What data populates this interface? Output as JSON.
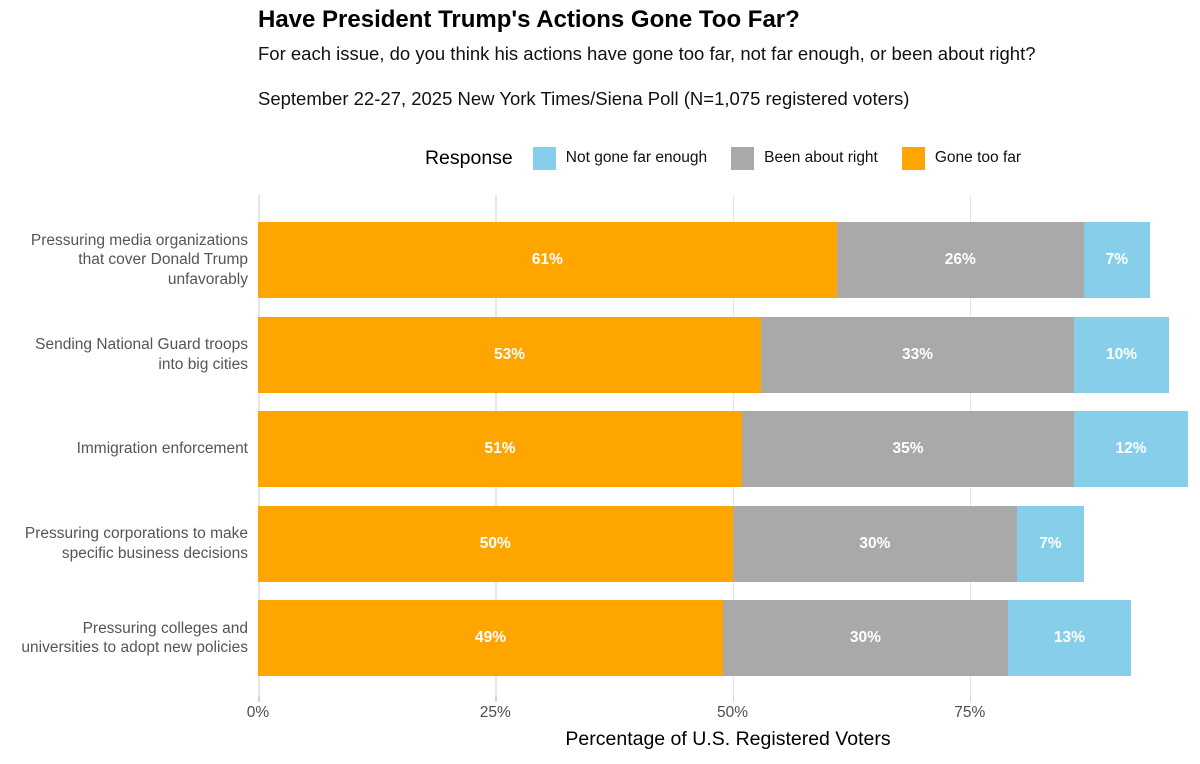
{
  "header": {
    "title": "Have President Trump's Actions Gone Too Far?",
    "subtitle": "For each issue, do you think his actions have gone too far, not far enough, or been about right?",
    "source_line": "September 22-27, 2025 New York Times/Siena Poll (N=1,075 registered voters)"
  },
  "legend": {
    "title": "Response",
    "items": [
      {
        "label": "Not gone far enough",
        "color": "#87CEEB"
      },
      {
        "label": "Been about right",
        "color": "#A9A9A9"
      },
      {
        "label": "Gone too far",
        "color": "#FFA500"
      }
    ]
  },
  "chart_data": {
    "type": "bar",
    "orientation": "horizontal",
    "stacked": true,
    "title": "Have President Trump's Actions Gone Too Far?",
    "subtitle": "For each issue, do you think his actions have gone too far, not far enough, or been about right?",
    "annotation": "September 22-27, 2025 New York Times/Siena Poll (N=1,075 registered voters)",
    "categories": [
      "Pressuring media organizations that cover Donald Trump unfavorably",
      "Sending National Guard troops into big cities",
      "Immigration enforcement",
      "Pressuring corporations to make specific business decisions",
      "Pressuring colleges and universities to adopt new policies"
    ],
    "series": [
      {
        "name": "Gone too far",
        "color": "#FFA500",
        "values": [
          61,
          53,
          51,
          50,
          49
        ]
      },
      {
        "name": "Been about right",
        "color": "#A9A9A9",
        "values": [
          26,
          33,
          35,
          30,
          30
        ]
      },
      {
        "name": "Not gone far enough",
        "color": "#87CEEB",
        "values": [
          7,
          10,
          12,
          7,
          13
        ]
      }
    ],
    "value_label_suffix": "%",
    "xlabel": "Percentage of U.S. Registered Voters",
    "x_tick_values": [
      0,
      25,
      50,
      75
    ],
    "x_tick_labels": [
      "0%",
      "25%",
      "50%",
      "75%"
    ],
    "xlim": [
      0,
      100
    ],
    "grid": "vertical",
    "legend_position": "top",
    "colors": {
      "grid": "#e6e6e6",
      "category_label": "#555555",
      "tick_label": "#4d4d4d",
      "bar_value_label": "#ffffff"
    }
  }
}
